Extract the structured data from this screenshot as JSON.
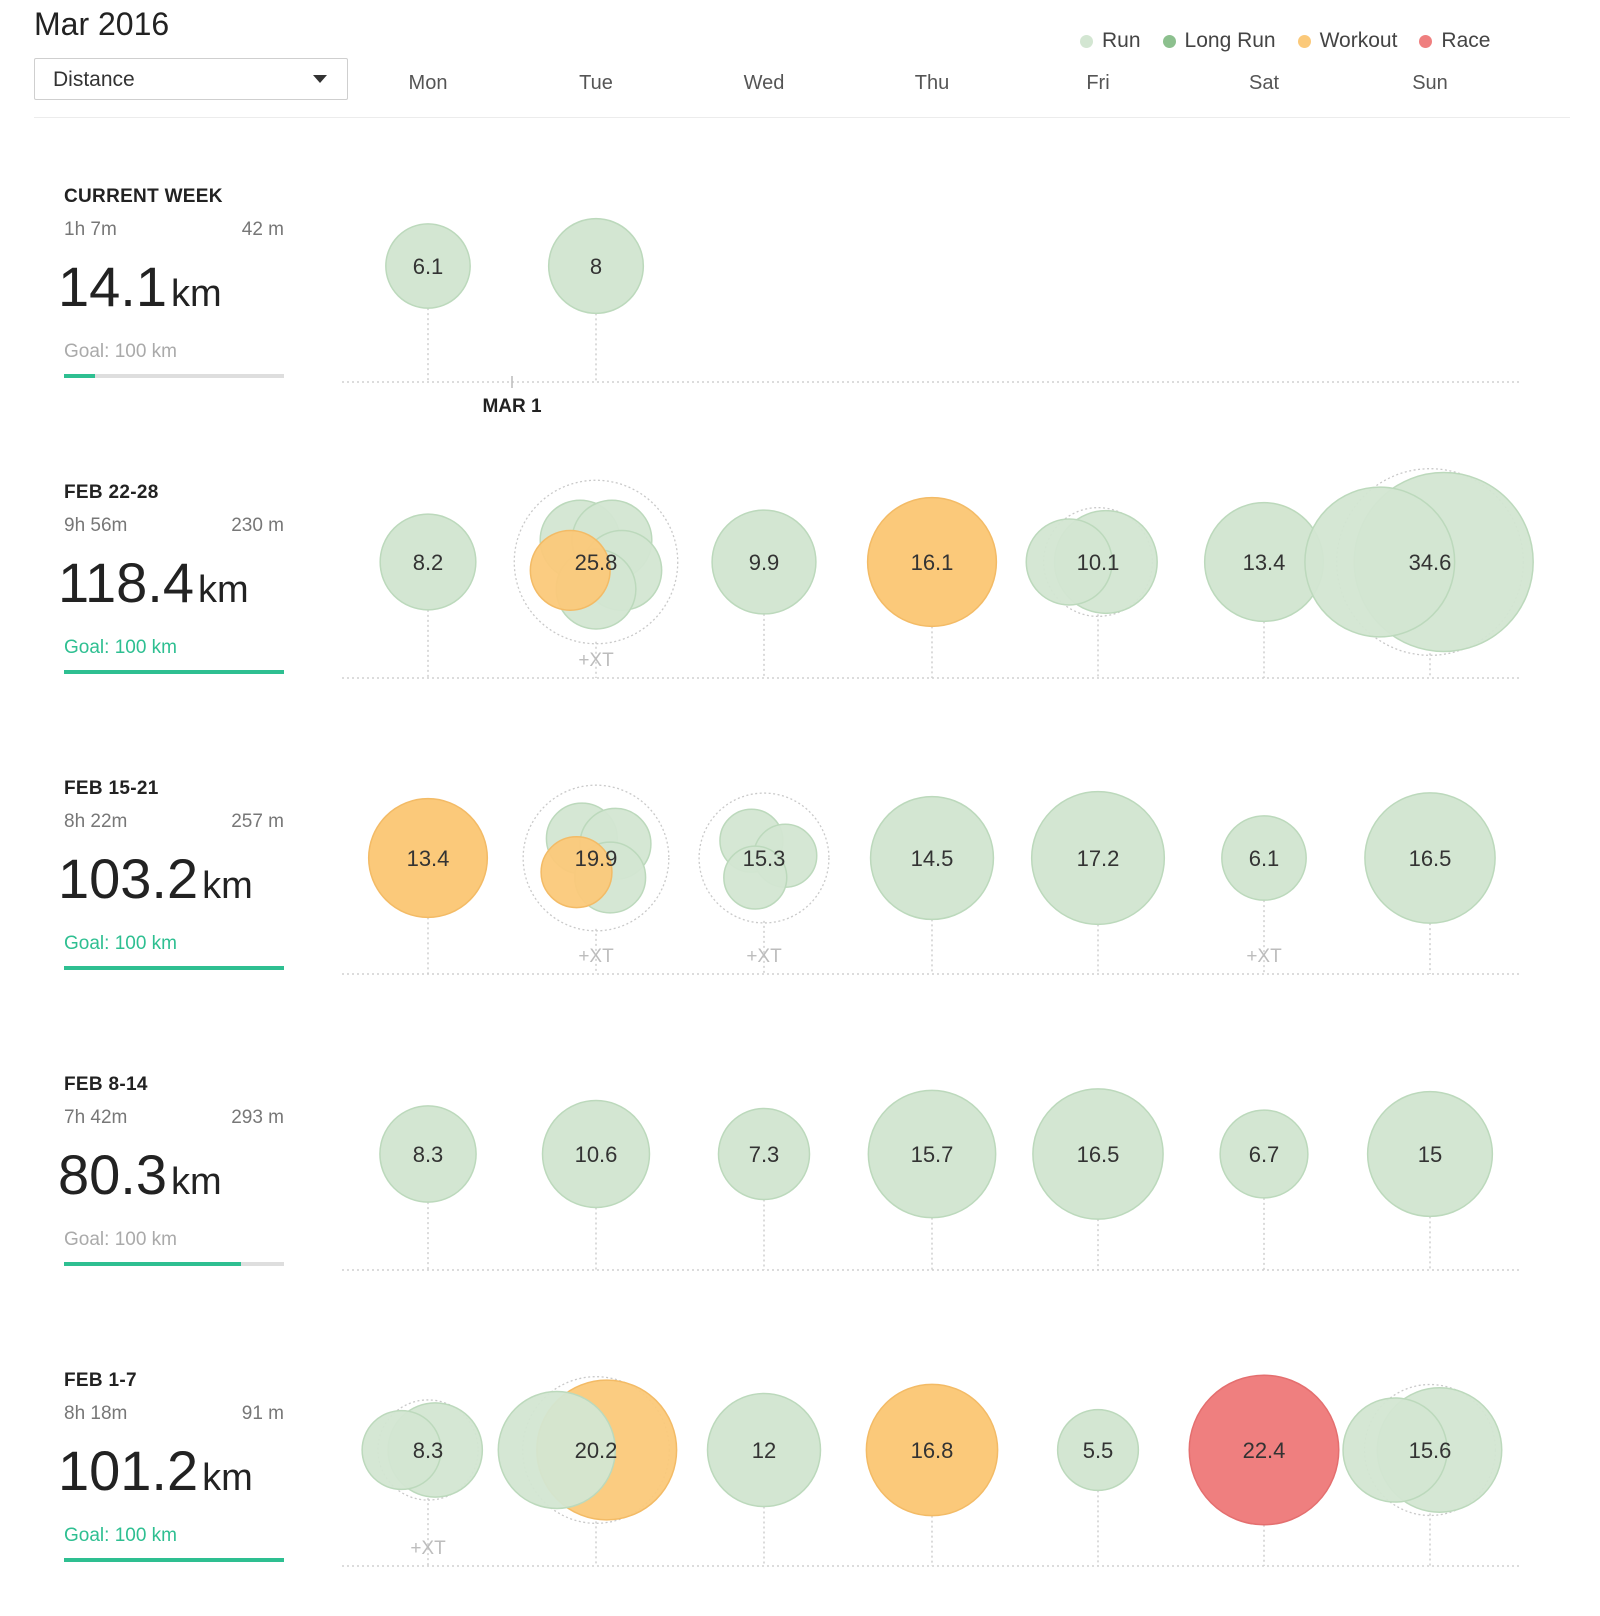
{
  "header": {
    "month": "Mar 2016",
    "metric_select": {
      "value": "Distance"
    },
    "legend": [
      {
        "label": "Run",
        "color": "#d3e6d2"
      },
      {
        "label": "Long Run",
        "color": "#8cc08e"
      },
      {
        "label": "Workout",
        "color": "#fbc97a"
      },
      {
        "label": "Race",
        "color": "#ef7f7f"
      }
    ],
    "days": [
      "Mon",
      "Tue",
      "Wed",
      "Thu",
      "Fri",
      "Sat",
      "Sun"
    ]
  },
  "marker": {
    "label": "MAR 1"
  },
  "colors": {
    "run": "#d3e6d2",
    "run_stroke": "#bcd9bc",
    "workout": "#fbc97a",
    "race": "#ef7f7f",
    "goal": "#2ebf91"
  },
  "weeks": [
    {
      "title": "CURRENT WEEK",
      "time": "1h 7m",
      "elevation": "42 m",
      "total": "14.1",
      "unit": "km",
      "goal_label": "Goal: 100 km",
      "goal_progress": 0.141,
      "goal_met": false
    },
    {
      "title": "FEB 22-28",
      "time": "9h 56m",
      "elevation": "230 m",
      "total": "118.4",
      "unit": "km",
      "goal_label": "Goal: 100 km",
      "goal_progress": 1.0,
      "goal_met": true
    },
    {
      "title": "FEB 15-21",
      "time": "8h 22m",
      "elevation": "257 m",
      "total": "103.2",
      "unit": "km",
      "goal_label": "Goal: 100 km",
      "goal_progress": 1.0,
      "goal_met": true
    },
    {
      "title": "FEB 8-14",
      "time": "7h 42m",
      "elevation": "293 m",
      "total": "80.3",
      "unit": "km",
      "goal_label": "Goal: 100 km",
      "goal_progress": 0.803,
      "goal_met": false
    },
    {
      "title": "FEB 1-7",
      "time": "8h 18m",
      "elevation": "91 m",
      "total": "101.2",
      "unit": "km",
      "goal_label": "Goal: 100 km",
      "goal_progress": 1.0,
      "goal_met": true
    }
  ],
  "chart_data": {
    "type": "scatter",
    "x": [
      "Mon",
      "Tue",
      "Wed",
      "Thu",
      "Fri",
      "Sat",
      "Sun"
    ],
    "y": [
      "CURRENT WEEK",
      "FEB 22-28",
      "FEB 15-21",
      "FEB 8-14",
      "FEB 1-7"
    ],
    "unit": "km",
    "series": [
      {
        "name": "Run",
        "color": "#d3e6d2"
      },
      {
        "name": "Long Run",
        "color": "#8cc08e"
      },
      {
        "name": "Workout",
        "color": "#fbc97a"
      },
      {
        "name": "Race",
        "color": "#ef7f7f"
      }
    ],
    "days": [
      [
        {
          "total": "6.1",
          "type": "run"
        },
        {
          "total": "8",
          "type": "run"
        },
        null,
        null,
        null,
        null,
        null
      ],
      [
        {
          "total": "8.2",
          "type": "run"
        },
        {
          "total": "25.8",
          "type": "run",
          "multi": true,
          "xt": true,
          "parts": [
            {
              "type": "run"
            },
            {
              "type": "run"
            },
            {
              "type": "run"
            },
            {
              "type": "run"
            },
            {
              "type": "workout"
            }
          ]
        },
        {
          "total": "9.9",
          "type": "run"
        },
        {
          "total": "16.1",
          "type": "workout"
        },
        {
          "total": "10.1",
          "type": "run",
          "multi": true,
          "parts": [
            {
              "type": "run"
            },
            {
              "type": "run"
            }
          ]
        },
        {
          "total": "13.4",
          "type": "run"
        },
        {
          "total": "34.6",
          "type": "run",
          "multi": true,
          "parts": [
            {
              "type": "run"
            },
            {
              "type": "run"
            }
          ]
        }
      ],
      [
        {
          "total": "13.4",
          "type": "workout"
        },
        {
          "total": "19.9",
          "type": "run",
          "multi": true,
          "xt": true,
          "parts": [
            {
              "type": "run"
            },
            {
              "type": "run"
            },
            {
              "type": "run"
            },
            {
              "type": "workout"
            }
          ]
        },
        {
          "total": "15.3",
          "type": "run",
          "multi": true,
          "xt": true,
          "parts": [
            {
              "type": "run"
            },
            {
              "type": "run"
            },
            {
              "type": "run"
            }
          ]
        },
        {
          "total": "14.5",
          "type": "run"
        },
        {
          "total": "17.2",
          "type": "run"
        },
        {
          "total": "6.1",
          "type": "run",
          "xt": true
        },
        {
          "total": "16.5",
          "type": "run"
        }
      ],
      [
        {
          "total": "8.3",
          "type": "run"
        },
        {
          "total": "10.6",
          "type": "run"
        },
        {
          "total": "7.3",
          "type": "run"
        },
        {
          "total": "15.7",
          "type": "run"
        },
        {
          "total": "16.5",
          "type": "run"
        },
        {
          "total": "6.7",
          "type": "run"
        },
        {
          "total": "15",
          "type": "run"
        }
      ],
      [
        {
          "total": "8.3",
          "type": "run",
          "multi": true,
          "xt": true,
          "parts": [
            {
              "type": "run"
            },
            {
              "type": "run"
            }
          ]
        },
        {
          "total": "20.2",
          "type": "workout",
          "multi": true,
          "parts": [
            {
              "type": "workout"
            },
            {
              "type": "run"
            }
          ]
        },
        {
          "total": "12",
          "type": "run"
        },
        {
          "total": "16.8",
          "type": "workout"
        },
        {
          "total": "5.5",
          "type": "run"
        },
        {
          "total": "22.4",
          "type": "race"
        },
        {
          "total": "15.6",
          "type": "run",
          "multi": true,
          "parts": [
            {
              "type": "run"
            },
            {
              "type": "run"
            }
          ]
        }
      ]
    ],
    "xt_label": "+XT",
    "grid": true,
    "legend_position": "top-right"
  }
}
